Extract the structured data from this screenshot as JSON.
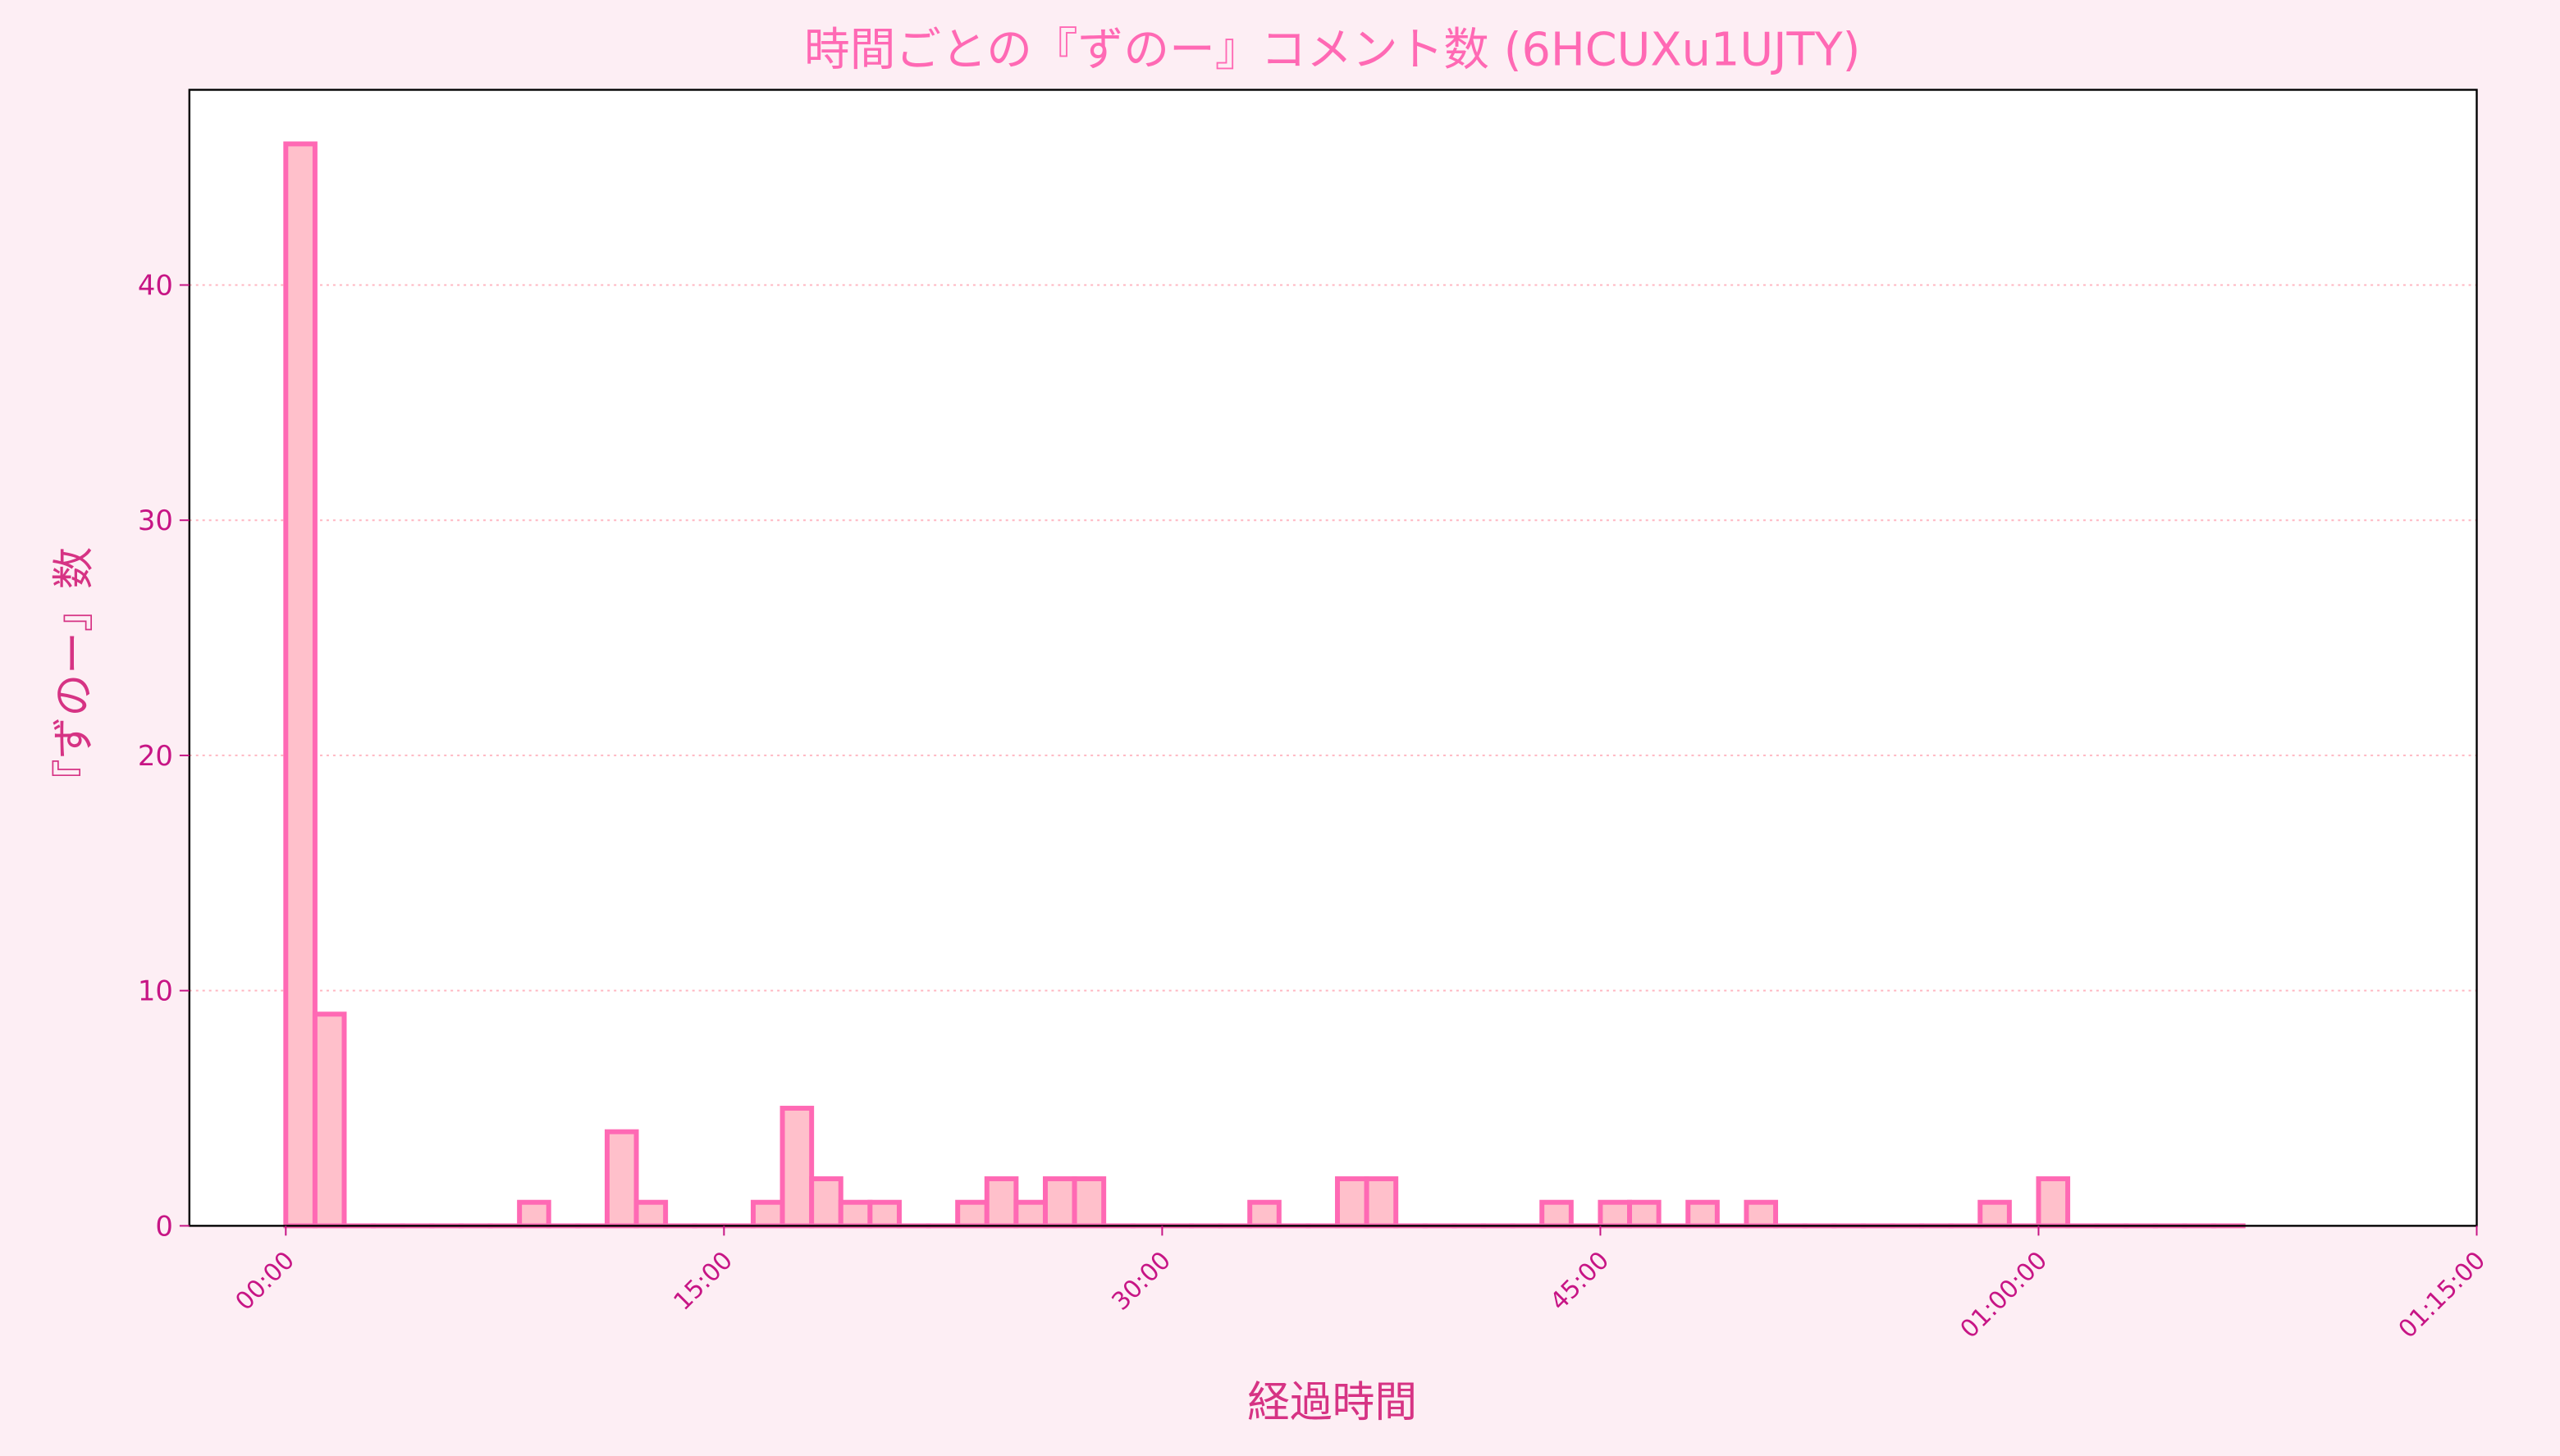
{
  "chart_data": {
    "type": "bar",
    "title": "時間ごとの『ずのー』コメント数 (6HCUXu1UJTY)",
    "xlabel": "経過時間",
    "ylabel": "『ずのー』数",
    "bin_width_minutes": 1,
    "x_minutes": [
      0,
      1,
      2,
      3,
      4,
      5,
      6,
      7,
      8,
      9,
      10,
      11,
      12,
      13,
      14,
      15,
      16,
      17,
      18,
      19,
      20,
      21,
      22,
      23,
      24,
      25,
      26,
      27,
      28,
      29,
      30,
      31,
      32,
      33,
      34,
      35,
      36,
      37,
      38,
      39,
      40,
      41,
      42,
      43,
      44,
      45,
      46,
      47,
      48,
      49,
      50,
      51,
      52,
      53,
      54,
      55,
      56,
      57,
      58,
      59,
      60,
      61,
      62,
      63,
      64,
      65,
      66
    ],
    "values": [
      46,
      9,
      0,
      0,
      0,
      0,
      0,
      0,
      1,
      0,
      0,
      4,
      1,
      0,
      0,
      0,
      1,
      5,
      2,
      1,
      1,
      0,
      0,
      1,
      2,
      1,
      2,
      2,
      0,
      0,
      0,
      0,
      0,
      1,
      0,
      0,
      2,
      2,
      0,
      0,
      0,
      0,
      0,
      1,
      0,
      1,
      1,
      0,
      1,
      0,
      1,
      0,
      0,
      0,
      0,
      0,
      0,
      0,
      1,
      0,
      2,
      0,
      0,
      0,
      0,
      0,
      0
    ],
    "xlim_minutes": [
      -3.3,
      75
    ],
    "ylim": [
      0,
      48.3
    ],
    "xticks": [
      {
        "value": 0,
        "label": "00:00"
      },
      {
        "value": 15,
        "label": "15:00"
      },
      {
        "value": 30,
        "label": "30:00"
      },
      {
        "value": 45,
        "label": "45:00"
      },
      {
        "value": 60,
        "label": "01:00:00"
      },
      {
        "value": 75,
        "label": "01:15:00"
      }
    ],
    "yticks": [
      {
        "value": 0,
        "label": "0"
      },
      {
        "value": 10,
        "label": "10"
      },
      {
        "value": 20,
        "label": "20"
      },
      {
        "value": 30,
        "label": "30"
      },
      {
        "value": 40,
        "label": "40"
      }
    ],
    "grid": "y-dotted",
    "colors": {
      "background": "#fdeef4",
      "plot_bg": "#ffffff",
      "bar_fill": "#ffc0cb",
      "bar_edge": "#ff69b4",
      "title": "#ff69b4",
      "axis_label": "#d63384",
      "tick_label": "#c71585",
      "grid": "#ffb6c1"
    }
  }
}
